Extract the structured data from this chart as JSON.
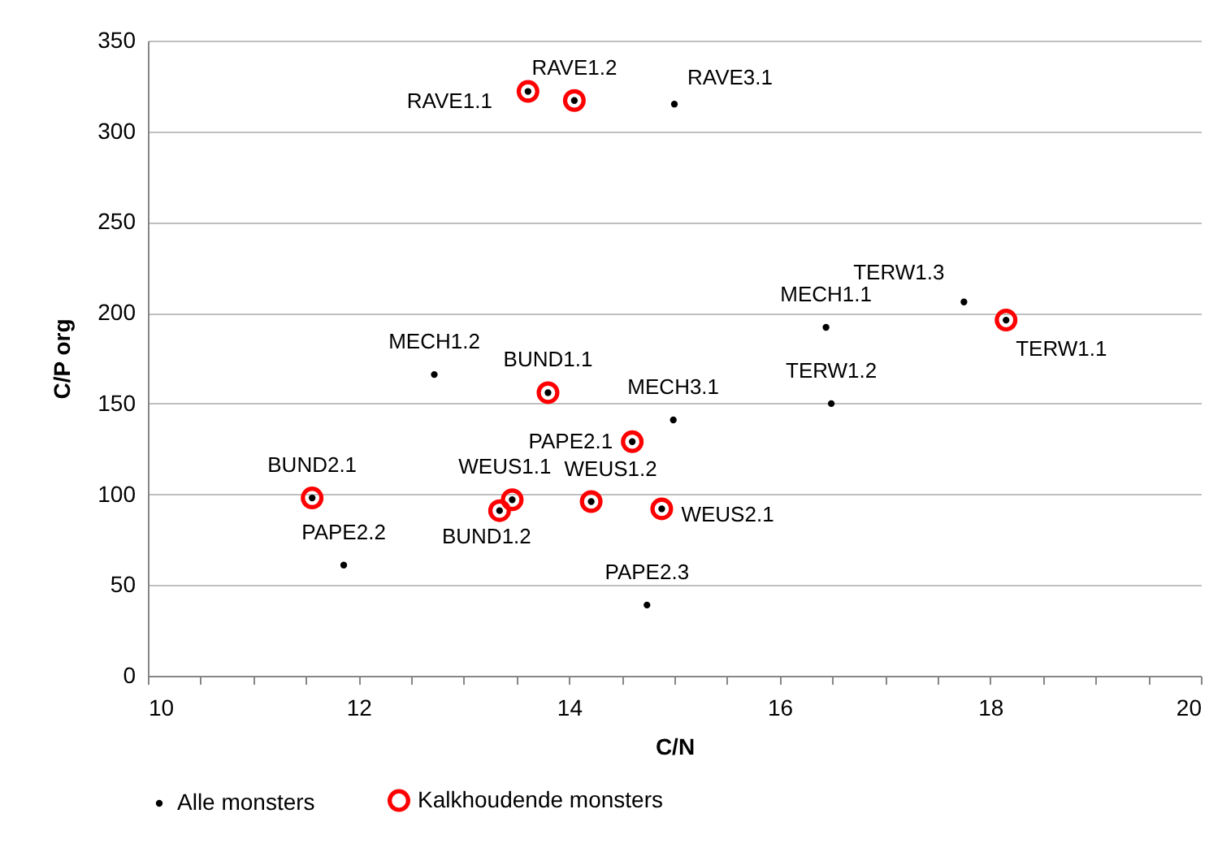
{
  "chart_data": {
    "type": "scatter",
    "xlabel": "C/N",
    "ylabel": "C/P org",
    "xlim": [
      10,
      20
    ],
    "ylim": [
      0,
      350
    ],
    "xticks": [
      10,
      {
        "value": 10.5,
        "label": null
      },
      {
        "value": 11,
        "label": null
      },
      {
        "value": 11.5,
        "label": null
      },
      12,
      {
        "value": 12.5,
        "label": null
      },
      {
        "value": 13,
        "label": null
      },
      {
        "value": 13.5,
        "label": null
      },
      14,
      {
        "value": 14.5,
        "label": null
      },
      {
        "value": 15,
        "label": null
      },
      {
        "value": 15.5,
        "label": null
      },
      16,
      {
        "value": 16.5,
        "label": null
      },
      {
        "value": 17,
        "label": null
      },
      {
        "value": 17.5,
        "label": null
      },
      18,
      {
        "value": 18.5,
        "label": null
      },
      {
        "value": 19,
        "label": null
      },
      {
        "value": 19.5,
        "label": null
      },
      20
    ],
    "yticks": [
      0,
      50,
      100,
      150,
      200,
      250,
      300,
      350
    ],
    "grid": "y",
    "legend": "bottom",
    "marker": "circle",
    "series": [
      {
        "name": "Alle monsters",
        "color": "#000000",
        "x": [
          13.61,
          14.05,
          15.0,
          17.75,
          18.15,
          16.44,
          16.49,
          14.99,
          12.72,
          13.8,
          14.6,
          14.21,
          14.88,
          14.74,
          11.56,
          11.86,
          13.34,
          13.46
        ],
        "values": [
          322,
          317,
          315,
          206,
          196,
          192,
          150,
          141,
          166,
          156,
          129,
          96,
          92,
          39,
          98,
          61,
          91,
          97
        ]
      },
      {
        "name": "Kalkhoudende monsters",
        "color": "#ff0000",
        "x": [
          13.61,
          14.05,
          18.15,
          13.8,
          14.6,
          14.21,
          14.88,
          11.56,
          13.34,
          13.46
        ],
        "values": [
          322,
          317,
          196,
          156,
          129,
          96,
          92,
          98,
          91,
          97
        ]
      }
    ],
    "annotations": [
      {
        "text": "RAVE1.1",
        "x": 13.61,
        "y": 322
      },
      {
        "text": "RAVE1.2",
        "x": 14.05,
        "y": 317
      },
      {
        "text": "RAVE3.1",
        "x": 15.0,
        "y": 315
      },
      {
        "text": "TERW1.3",
        "x": 17.75,
        "y": 206
      },
      {
        "text": "TERW1.1",
        "x": 18.15,
        "y": 196
      },
      {
        "text": "MECH1.1",
        "x": 16.44,
        "y": 192
      },
      {
        "text": "TERW1.2",
        "x": 16.49,
        "y": 150
      },
      {
        "text": "MECH3.1",
        "x": 14.99,
        "y": 141
      },
      {
        "text": "MECH1.2",
        "x": 12.72,
        "y": 166
      },
      {
        "text": "BUND1.1",
        "x": 13.8,
        "y": 156
      },
      {
        "text": "PAPE2.1",
        "x": 14.6,
        "y": 129
      },
      {
        "text": "WEUS1.2",
        "x": 14.21,
        "y": 96
      },
      {
        "text": "WEUS2.1",
        "x": 14.88,
        "y": 92
      },
      {
        "text": "PAPE2.3",
        "x": 14.74,
        "y": 39
      },
      {
        "text": "BUND2.1",
        "x": 11.56,
        "y": 98
      },
      {
        "text": "PAPE2.2",
        "x": 11.86,
        "y": 61
      },
      {
        "text": "BUND1.2",
        "x": 13.34,
        "y": 91
      },
      {
        "text": "WEUS1.1",
        "x": 13.46,
        "y": 97
      }
    ]
  }
}
